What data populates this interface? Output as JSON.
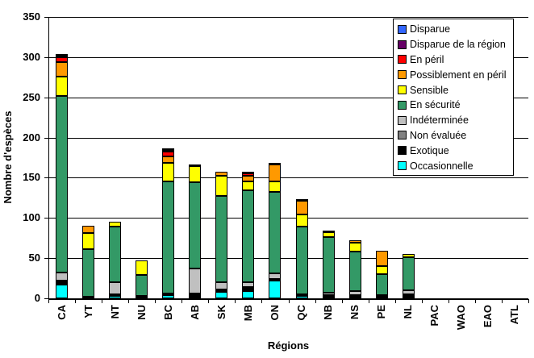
{
  "chart_data": {
    "type": "bar",
    "variant": "stacked-vertical",
    "title": "",
    "xlabel": "Régions",
    "ylabel": "Nombre d'espèces",
    "ylim": [
      0,
      350
    ],
    "ytick_step": 50,
    "yticks": [
      0,
      50,
      100,
      150,
      200,
      250,
      300,
      350
    ],
    "grid": true,
    "legend_position": "top-right",
    "plot_bg": "#FFFFFF",
    "categories": [
      "CA",
      "YT",
      "NT",
      "NU",
      "BC",
      "AB",
      "SK",
      "MB",
      "ON",
      "QC",
      "NB",
      "NS",
      "PE",
      "NL",
      "PAC",
      "WAO",
      "EAO",
      "ATL"
    ],
    "series": [
      {
        "name": "Disparue",
        "color": "#3366FF",
        "values": [
          1,
          0,
          0,
          0,
          1,
          0,
          0,
          0,
          0,
          0,
          0,
          0,
          0,
          0,
          0,
          0,
          0,
          0
        ]
      },
      {
        "name": "Disparue de la région",
        "color": "#660066",
        "values": [
          1,
          0,
          0,
          0,
          2,
          1,
          0,
          2,
          2,
          0,
          0,
          0,
          0,
          0,
          0,
          0,
          0,
          0
        ]
      },
      {
        "name": "En péril",
        "color": "#FF0000",
        "values": [
          6,
          0,
          0,
          0,
          6,
          0,
          0,
          3,
          0,
          1,
          0,
          0,
          0,
          0,
          0,
          0,
          0,
          0
        ]
      },
      {
        "name": "Possiblement en péril",
        "color": "#FF9900",
        "values": [
          18,
          9,
          0,
          0,
          8,
          0,
          5,
          7,
          21,
          17,
          2,
          3,
          19,
          0,
          0,
          0,
          0,
          0
        ]
      },
      {
        "name": "Sensible",
        "color": "#FFFF00",
        "values": [
          24,
          20,
          6,
          18,
          23,
          20,
          25,
          11,
          13,
          15,
          6,
          11,
          10,
          4,
          0,
          0,
          0,
          0
        ]
      },
      {
        "name": "En sécurité",
        "color": "#339966",
        "values": [
          220,
          59,
          69,
          26,
          139,
          107,
          107,
          114,
          101,
          84,
          69,
          49,
          26,
          41,
          0,
          0,
          0,
          0
        ]
      },
      {
        "name": "Indéterminée",
        "color": "#C0C0C0",
        "values": [
          10,
          0,
          15,
          0,
          0,
          31,
          9,
          6,
          7,
          0,
          3,
          5,
          0,
          5,
          0,
          0,
          0,
          0
        ]
      },
      {
        "name": "Non évaluée",
        "color": "#808080",
        "values": [
          0,
          0,
          0,
          0,
          0,
          0,
          0,
          0,
          0,
          0,
          0,
          0,
          0,
          0,
          0,
          0,
          0,
          0
        ]
      },
      {
        "name": "Exotique",
        "color": "#000000",
        "values": [
          5,
          0,
          1,
          3,
          2,
          4,
          3,
          5,
          2,
          1,
          2,
          2,
          2,
          3,
          0,
          0,
          0,
          0
        ]
      },
      {
        "name": "Occasionnelle",
        "color": "#00FFFF",
        "values": [
          17,
          2,
          3,
          0,
          4,
          2,
          8,
          9,
          22,
          3,
          2,
          2,
          2,
          1,
          0,
          0,
          0,
          0
        ]
      }
    ]
  }
}
